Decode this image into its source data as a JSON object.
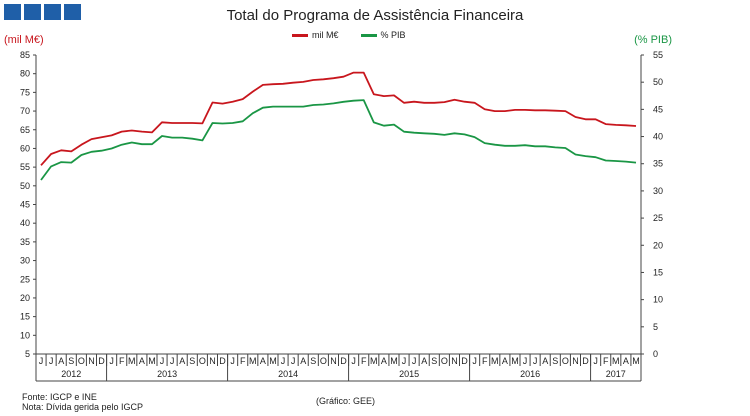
{
  "header": {
    "title": "Total do Programa de Assistência Financeira"
  },
  "footer": {
    "source": "Fonte: IGCP e INE",
    "note": "Nota: Dívida gerida pelo IGCP",
    "credit": "(Gráfico: GEE)"
  },
  "chart_data": {
    "type": "line",
    "title": "Total do Programa de Assistência Financeira",
    "left_axis_label": "(mil M€)",
    "right_axis_label": "(% PIB)",
    "left_ylim": [
      5,
      85
    ],
    "left_ticks": [
      5,
      10,
      15,
      20,
      25,
      30,
      35,
      40,
      45,
      50,
      55,
      60,
      65,
      70,
      75,
      80,
      85
    ],
    "right_ylim": [
      0,
      55
    ],
    "right_ticks": [
      0,
      5,
      10,
      15,
      20,
      25,
      30,
      35,
      40,
      45,
      50,
      55
    ],
    "legend_position": "top-center",
    "month_labels": [
      "J",
      "J",
      "A",
      "S",
      "O",
      "N",
      "D",
      "J",
      "F",
      "M",
      "A",
      "M",
      "J",
      "J",
      "A",
      "S",
      "O",
      "N",
      "D",
      "J",
      "F",
      "M",
      "A",
      "M",
      "J",
      "J",
      "A",
      "S",
      "O",
      "N",
      "D",
      "J",
      "F",
      "M",
      "A",
      "M",
      "J",
      "J",
      "A",
      "S",
      "O",
      "N",
      "D",
      "J",
      "F",
      "M",
      "A",
      "M",
      "J",
      "J",
      "A",
      "S",
      "O",
      "N",
      "D",
      "J",
      "F",
      "M",
      "A",
      "M"
    ],
    "year_groups": [
      {
        "label": "2012",
        "start": 0,
        "count": 7
      },
      {
        "label": "2013",
        "start": 7,
        "count": 12
      },
      {
        "label": "2014",
        "start": 19,
        "count": 12
      },
      {
        "label": "2015",
        "start": 31,
        "count": 12
      },
      {
        "label": "2016",
        "start": 43,
        "count": 12
      },
      {
        "label": "2017",
        "start": 55,
        "count": 5
      }
    ],
    "series": [
      {
        "name": "mil M€",
        "axis": "left",
        "color": "#c8161d",
        "values": [
          55.5,
          58.5,
          59.5,
          59.2,
          61.0,
          62.5,
          63.0,
          63.5,
          64.5,
          64.8,
          64.5,
          64.3,
          67.0,
          66.8,
          66.8,
          66.8,
          66.7,
          72.3,
          72.0,
          72.5,
          73.2,
          75.2,
          77.0,
          77.2,
          77.3,
          77.6,
          77.8,
          78.3,
          78.5,
          78.8,
          79.2,
          80.3,
          80.3,
          74.5,
          74.0,
          74.2,
          72.2,
          72.5,
          72.2,
          72.2,
          72.4,
          73.0,
          72.5,
          72.2,
          70.5,
          70.0,
          70.0,
          70.3,
          70.3,
          70.2,
          70.2,
          70.1,
          70.0,
          68.4,
          67.8,
          67.8,
          66.5,
          66.3,
          66.2,
          66.0
        ]
      },
      {
        "name": "% PIB",
        "axis": "right",
        "color": "#1a9645",
        "values": [
          32.0,
          34.5,
          35.3,
          35.2,
          36.6,
          37.2,
          37.4,
          37.8,
          38.5,
          38.9,
          38.6,
          38.6,
          40.1,
          39.8,
          39.8,
          39.6,
          39.3,
          42.5,
          42.4,
          42.5,
          42.8,
          44.3,
          45.3,
          45.5,
          45.5,
          45.5,
          45.5,
          45.8,
          45.9,
          46.1,
          46.4,
          46.6,
          46.7,
          42.6,
          42.0,
          42.2,
          40.9,
          40.7,
          40.6,
          40.5,
          40.3,
          40.6,
          40.4,
          39.9,
          38.8,
          38.5,
          38.3,
          38.3,
          38.4,
          38.2,
          38.2,
          38.0,
          37.9,
          36.7,
          36.4,
          36.2,
          35.6,
          35.5,
          35.4,
          35.2
        ]
      }
    ]
  }
}
